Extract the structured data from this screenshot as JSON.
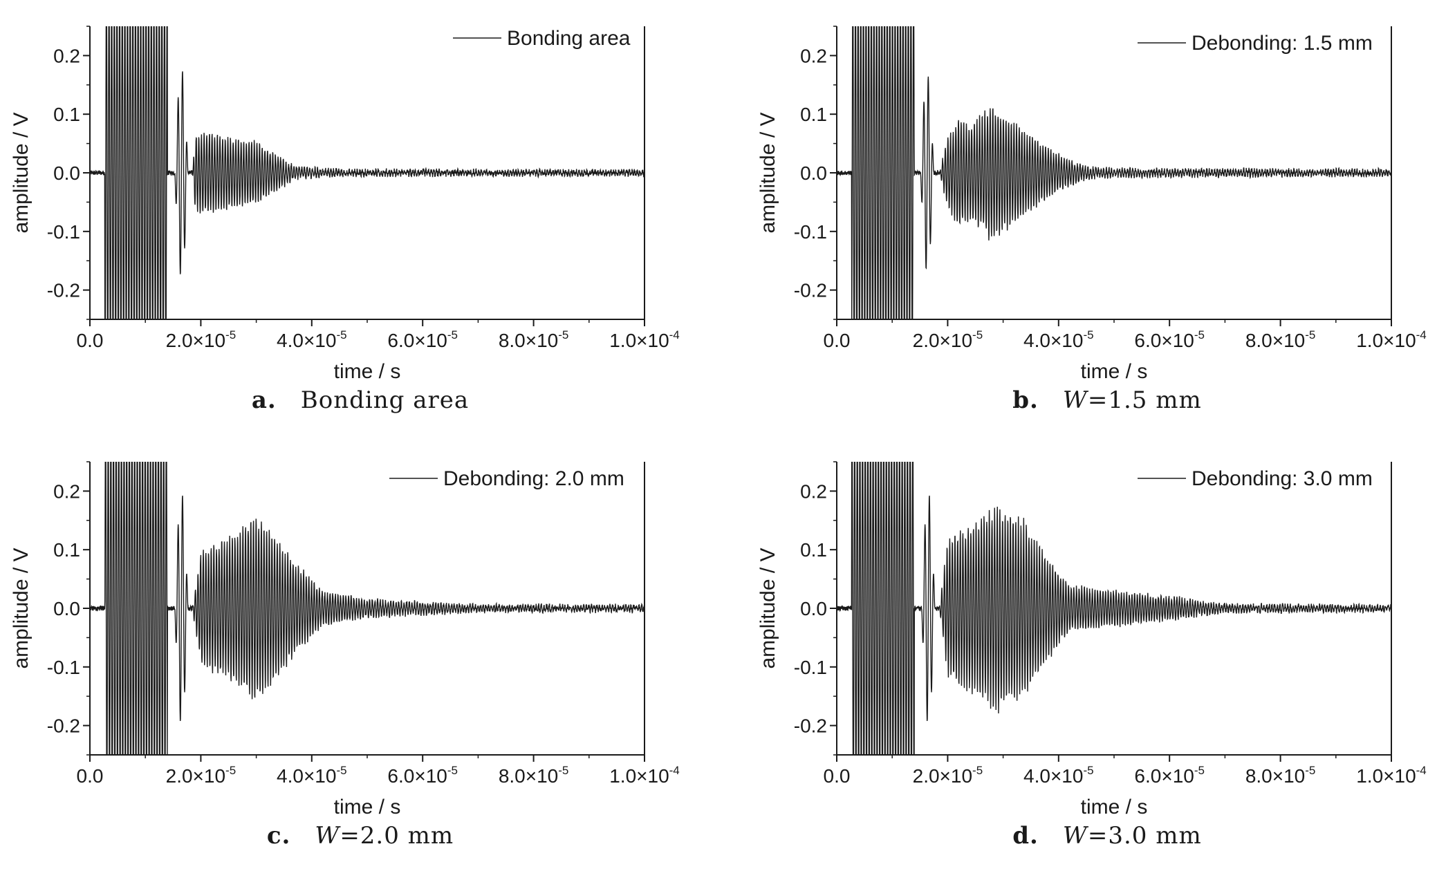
{
  "chart_data": [
    {
      "type": "line",
      "panel_letter": "a.",
      "caption_italic": "",
      "caption_rest": "Bonding area",
      "legend": "Bonding area",
      "xlabel": "time / s",
      "ylabel": "amplitude / V",
      "xlim": [
        0,
        0.0001
      ],
      "ylim": [
        -0.25,
        0.25
      ],
      "x_ticks": [
        {
          "m": "0.0",
          "e": ""
        },
        {
          "m": "2.0×10",
          "e": "-5"
        },
        {
          "m": "4.0×10",
          "e": "-5"
        },
        {
          "m": "6.0×10",
          "e": "-5"
        },
        {
          "m": "8.0×10",
          "e": "-5"
        },
        {
          "m": "1.0×10",
          "e": "-4"
        }
      ],
      "y_ticks": [
        "0.2",
        "0.1",
        "0.0",
        "-0.1",
        "-0.2"
      ],
      "y_tick_values": [
        0.2,
        0.1,
        0.0,
        -0.1,
        -0.2
      ],
      "x_tick_values": [
        0,
        2e-05,
        4e-05,
        6e-05,
        8e-05,
        0.0001
      ],
      "series": [
        {
          "envelope": [
            [
              2.7e-06,
              0.25
            ],
            [
              1.4e-05,
              0.25
            ]
          ],
          "direct_pulse": {
            "t": 1.65e-05,
            "amp": 0.18
          },
          "echo_envelope": [
            [
              1.85e-05,
              0.0
            ],
            [
              1.9e-05,
              0.07
            ],
            [
              2.2e-05,
              0.07
            ],
            [
              2.6e-05,
              0.06
            ],
            [
              3e-05,
              0.055
            ],
            [
              3.3e-05,
              0.035
            ],
            [
              3.7e-05,
              0.01
            ],
            [
              4.5e-05,
              0.004
            ],
            [
              0.0001,
              0.003
            ]
          ]
        }
      ]
    },
    {
      "type": "line",
      "panel_letter": "b.",
      "caption_italic": "W",
      "caption_rest": "=1.5 mm",
      "legend": "Debonding: 1.5 mm",
      "xlabel": "time / s",
      "ylabel": "amplitude / V",
      "xlim": [
        0,
        0.0001
      ],
      "ylim": [
        -0.25,
        0.25
      ],
      "x_ticks": [
        {
          "m": "0.0",
          "e": ""
        },
        {
          "m": "2.0×10",
          "e": "-5"
        },
        {
          "m": "4.0×10",
          "e": "-5"
        },
        {
          "m": "6.0×10",
          "e": "-5"
        },
        {
          "m": "8.0×10",
          "e": "-5"
        },
        {
          "m": "1.0×10",
          "e": "-4"
        }
      ],
      "y_ticks": [
        "0.2",
        "0.1",
        "0.0",
        "-0.1",
        "-0.2"
      ],
      "y_tick_values": [
        0.2,
        0.1,
        0.0,
        -0.1,
        -0.2
      ],
      "x_tick_values": [
        0,
        2e-05,
        4e-05,
        6e-05,
        8e-05,
        0.0001
      ],
      "series": [
        {
          "envelope": [
            [
              2.7e-06,
              0.25
            ],
            [
              1.4e-05,
              0.25
            ]
          ],
          "direct_pulse": {
            "t": 1.63e-05,
            "amp": 0.17
          },
          "echo_envelope": [
            [
              1.85e-05,
              0.0
            ],
            [
              2e-05,
              0.06
            ],
            [
              2.2e-05,
              0.1
            ],
            [
              2.4e-05,
              0.08
            ],
            [
              2.8e-05,
              0.12
            ],
            [
              3.2e-05,
              0.09
            ],
            [
              3.6e-05,
              0.06
            ],
            [
              4e-05,
              0.03
            ],
            [
              4.5e-05,
              0.01
            ],
            [
              5e-05,
              0.006
            ],
            [
              0.0001,
              0.004
            ]
          ]
        }
      ]
    },
    {
      "type": "line",
      "panel_letter": "c.",
      "caption_italic": "W",
      "caption_rest": "=2.0 mm",
      "legend": "Debonding: 2.0 mm",
      "xlabel": "time / s",
      "ylabel": "amplitude / V",
      "xlim": [
        0,
        0.0001
      ],
      "ylim": [
        -0.25,
        0.25
      ],
      "x_ticks": [
        {
          "m": "0.0",
          "e": ""
        },
        {
          "m": "2.0×10",
          "e": "-5"
        },
        {
          "m": "4.0×10",
          "e": "-5"
        },
        {
          "m": "6.0×10",
          "e": "-5"
        },
        {
          "m": "8.0×10",
          "e": "-5"
        },
        {
          "m": "1.0×10",
          "e": "-4"
        }
      ],
      "y_ticks": [
        "0.2",
        "0.1",
        "0.0",
        "-0.1",
        "-0.2"
      ],
      "y_tick_values": [
        0.2,
        0.1,
        0.0,
        -0.1,
        -0.2
      ],
      "x_tick_values": [
        0,
        2e-05,
        4e-05,
        6e-05,
        8e-05,
        0.0001
      ],
      "series": [
        {
          "envelope": [
            [
              2.7e-06,
              0.25
            ],
            [
              1.4e-05,
              0.25
            ]
          ],
          "direct_pulse": {
            "t": 1.65e-05,
            "amp": 0.2
          },
          "echo_envelope": [
            [
              1.85e-05,
              0.0
            ],
            [
              2e-05,
              0.1
            ],
            [
              2.4e-05,
              0.12
            ],
            [
              3e-05,
              0.165
            ],
            [
              3.4e-05,
              0.12
            ],
            [
              3.8e-05,
              0.07
            ],
            [
              4.2e-05,
              0.03
            ],
            [
              5e-05,
              0.015
            ],
            [
              6e-05,
              0.01
            ],
            [
              7e-05,
              0.005
            ],
            [
              0.0001,
              0.004
            ]
          ]
        }
      ]
    },
    {
      "type": "line",
      "panel_letter": "d.",
      "caption_italic": "W",
      "caption_rest": "=3.0 mm",
      "legend": "Debonding: 3.0 mm",
      "xlabel": "time / s",
      "ylabel": "amplitude / V",
      "xlim": [
        0,
        0.0001
      ],
      "ylim": [
        -0.25,
        0.25
      ],
      "x_ticks": [
        {
          "m": "0.0",
          "e": ""
        },
        {
          "m": "2.0×10",
          "e": "-5"
        },
        {
          "m": "4.0×10",
          "e": "-5"
        },
        {
          "m": "6.0×10",
          "e": "-5"
        },
        {
          "m": "8.0×10",
          "e": "-5"
        },
        {
          "m": "1.0×10",
          "e": "-4"
        }
      ],
      "y_ticks": [
        "0.2",
        "0.1",
        "0.0",
        "-0.1",
        "-0.2"
      ],
      "y_tick_values": [
        0.2,
        0.1,
        0.0,
        -0.1,
        -0.2
      ],
      "x_tick_values": [
        0,
        2e-05,
        4e-05,
        6e-05,
        8e-05,
        0.0001
      ],
      "series": [
        {
          "envelope": [
            [
              2.7e-06,
              0.25
            ],
            [
              1.4e-05,
              0.25
            ]
          ],
          "direct_pulse": {
            "t": 1.65e-05,
            "amp": 0.2
          },
          "echo_envelope": [
            [
              1.85e-05,
              0.0
            ],
            [
              2e-05,
              0.12
            ],
            [
              2.4e-05,
              0.15
            ],
            [
              2.9e-05,
              0.18
            ],
            [
              3.4e-05,
              0.15
            ],
            [
              3.8e-05,
              0.09
            ],
            [
              4.2e-05,
              0.04
            ],
            [
              5e-05,
              0.03
            ],
            [
              6e-05,
              0.02
            ],
            [
              7e-05,
              0.006
            ],
            [
              0.0001,
              0.004
            ]
          ]
        }
      ]
    }
  ]
}
